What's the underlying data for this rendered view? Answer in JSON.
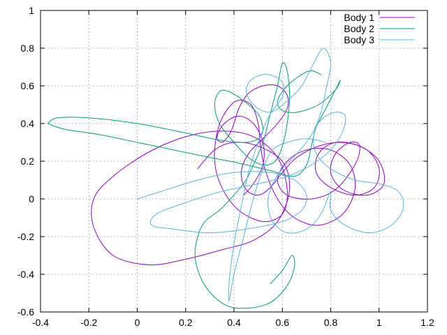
{
  "chart_data": {
    "type": "line",
    "title": "",
    "xlabel": "",
    "ylabel": "",
    "xlim": [
      -0.4,
      1.2
    ],
    "ylim": [
      -0.6,
      1.0
    ],
    "x_ticks": [
      -0.4,
      -0.2,
      0,
      0.2,
      0.4,
      0.6,
      0.8,
      1,
      1.2
    ],
    "x_tick_labels": [
      "-0.4",
      "-0.2",
      "0",
      "0.2",
      "0.4",
      "0.6",
      "0.8",
      "1",
      "1.2"
    ],
    "y_ticks": [
      -0.6,
      -0.4,
      -0.2,
      0,
      0.2,
      0.4,
      0.6,
      0.8,
      1
    ],
    "y_tick_labels": [
      "-0.6",
      "-0.4",
      "-0.2",
      "0",
      "0.2",
      "0.4",
      "0.6",
      "0.8",
      "1"
    ],
    "grid": true,
    "legend_position": "top-right",
    "series": [
      {
        "name": "Body 1",
        "color": "#9400d3",
        "points": [
          [
            0.25,
            0.16
          ],
          [
            0.32,
            0.26
          ],
          [
            0.4,
            0.3
          ],
          [
            0.5,
            0.28
          ],
          [
            0.6,
            0.2
          ],
          [
            0.63,
            0.05
          ],
          [
            0.58,
            -0.12
          ],
          [
            0.48,
            -0.22
          ],
          [
            0.35,
            -0.27
          ],
          [
            0.2,
            -0.32
          ],
          [
            0.05,
            -0.35
          ],
          [
            -0.1,
            -0.3
          ],
          [
            -0.18,
            -0.15
          ],
          [
            -0.18,
            0.0
          ],
          [
            -0.1,
            0.12
          ],
          [
            0.05,
            0.25
          ],
          [
            0.2,
            0.33
          ],
          [
            0.35,
            0.36
          ],
          [
            0.48,
            0.33
          ],
          [
            0.58,
            0.22
          ],
          [
            0.62,
            0.05
          ],
          [
            0.6,
            -0.08
          ],
          [
            0.52,
            -0.12
          ],
          [
            0.42,
            -0.06
          ],
          [
            0.35,
            0.06
          ],
          [
            0.32,
            0.2
          ],
          [
            0.33,
            0.35
          ],
          [
            0.36,
            0.45
          ],
          [
            0.41,
            0.52
          ],
          [
            0.47,
            0.5
          ],
          [
            0.5,
            0.4
          ],
          [
            0.51,
            0.28
          ],
          [
            0.53,
            0.15
          ],
          [
            0.58,
            0.0
          ],
          [
            0.65,
            -0.1
          ],
          [
            0.75,
            -0.14
          ],
          [
            0.85,
            -0.08
          ],
          [
            0.9,
            0.05
          ],
          [
            0.88,
            0.18
          ],
          [
            0.8,
            0.26
          ],
          [
            0.7,
            0.26
          ],
          [
            0.62,
            0.2
          ],
          [
            0.58,
            0.1
          ],
          [
            0.62,
            0.02
          ],
          [
            0.72,
            0.0
          ],
          [
            0.82,
            0.05
          ],
          [
            0.9,
            0.18
          ],
          [
            0.92,
            0.28
          ],
          [
            0.88,
            0.3
          ],
          [
            0.82,
            0.24
          ],
          [
            0.8,
            0.14
          ],
          [
            0.85,
            0.05
          ],
          [
            0.95,
            0.02
          ],
          [
            1.02,
            0.08
          ],
          [
            1.0,
            0.2
          ],
          [
            0.92,
            0.28
          ],
          [
            0.82,
            0.3
          ],
          [
            0.75,
            0.24
          ],
          [
            0.74,
            0.14
          ],
          [
            0.8,
            0.06
          ],
          [
            0.9,
            0.02
          ],
          [
            0.98,
            0.06
          ],
          [
            1.0,
            0.16
          ],
          [
            0.95,
            0.26
          ],
          [
            0.85,
            0.3
          ],
          [
            0.75,
            0.28
          ],
          [
            0.66,
            0.22
          ],
          [
            0.6,
            0.14
          ],
          [
            0.55,
            0.06
          ],
          [
            0.5,
            0.02
          ],
          [
            0.45,
            0.05
          ],
          [
            0.43,
            0.14
          ],
          [
            0.46,
            0.24
          ],
          [
            0.52,
            0.32
          ],
          [
            0.58,
            0.4
          ],
          [
            0.62,
            0.48
          ],
          [
            0.62,
            0.55
          ],
          [
            0.58,
            0.6
          ],
          [
            0.52,
            0.6
          ],
          [
            0.46,
            0.56
          ],
          [
            0.42,
            0.48
          ],
          [
            0.4,
            0.4
          ],
          [
            0.38,
            0.34
          ],
          [
            0.35,
            0.3
          ],
          [
            0.33,
            0.33
          ],
          [
            0.36,
            0.4
          ],
          [
            0.42,
            0.44
          ],
          [
            0.48,
            0.4
          ],
          [
            0.52,
            0.3
          ],
          [
            0.52,
            0.18
          ],
          [
            0.48,
            0.08
          ],
          [
            0.44,
            0.02
          ]
        ]
      },
      {
        "name": "Body 2",
        "color": "#009e73",
        "points": [
          [
            -0.37,
            0.4
          ],
          [
            -0.33,
            0.43
          ],
          [
            -0.2,
            0.43
          ],
          [
            0.0,
            0.4
          ],
          [
            0.2,
            0.35
          ],
          [
            0.35,
            0.31
          ],
          [
            0.45,
            0.3
          ],
          [
            0.5,
            0.32
          ],
          [
            0.52,
            0.37
          ],
          [
            0.5,
            0.45
          ],
          [
            0.44,
            0.52
          ],
          [
            0.38,
            0.57
          ],
          [
            0.34,
            0.57
          ],
          [
            0.32,
            0.5
          ],
          [
            0.34,
            0.4
          ],
          [
            0.4,
            0.3
          ],
          [
            0.46,
            0.22
          ],
          [
            0.52,
            0.18
          ],
          [
            0.57,
            0.2
          ],
          [
            0.6,
            0.28
          ],
          [
            0.62,
            0.4
          ],
          [
            0.63,
            0.55
          ],
          [
            0.62,
            0.68
          ],
          [
            0.6,
            0.72
          ],
          [
            0.58,
            0.6
          ],
          [
            0.55,
            0.45
          ],
          [
            0.52,
            0.3
          ],
          [
            0.48,
            0.18
          ],
          [
            0.45,
            0.1
          ],
          [
            0.4,
            0.02
          ],
          [
            0.34,
            -0.06
          ],
          [
            0.28,
            -0.12
          ],
          [
            0.25,
            -0.2
          ],
          [
            0.24,
            -0.32
          ],
          [
            0.28,
            -0.46
          ],
          [
            0.36,
            -0.56
          ],
          [
            0.45,
            -0.58
          ],
          [
            0.55,
            -0.55
          ],
          [
            0.62,
            -0.46
          ],
          [
            0.65,
            -0.36
          ],
          [
            0.64,
            -0.3
          ],
          [
            0.6,
            -0.38
          ],
          [
            0.55,
            -0.45
          ]
        ],
        "tail": [
          [
            -0.37,
            0.4
          ],
          [
            -0.3,
            0.37
          ],
          [
            -0.15,
            0.34
          ],
          [
            0.0,
            0.3
          ],
          [
            0.15,
            0.26
          ],
          [
            0.3,
            0.22
          ],
          [
            0.42,
            0.19
          ],
          [
            0.55,
            0.15
          ],
          [
            0.65,
            0.12
          ],
          [
            0.7,
            0.18
          ],
          [
            0.72,
            0.28
          ],
          [
            0.74,
            0.38
          ],
          [
            0.78,
            0.48
          ],
          [
            0.82,
            0.58
          ],
          [
            0.84,
            0.63
          ],
          [
            0.82,
            0.58
          ],
          [
            0.75,
            0.5
          ],
          [
            0.66,
            0.46
          ],
          [
            0.6,
            0.47
          ],
          [
            0.58,
            0.52
          ],
          [
            0.62,
            0.6
          ],
          [
            0.68,
            0.66
          ],
          [
            0.72,
            0.68
          ],
          [
            0.76,
            0.66
          ]
        ]
      },
      {
        "name": "Body 3",
        "color": "#56b4e9",
        "points": [
          [
            0.0,
            0.0
          ],
          [
            0.1,
            0.04
          ],
          [
            0.25,
            0.1
          ],
          [
            0.4,
            0.14
          ],
          [
            0.55,
            0.14
          ],
          [
            0.65,
            0.1
          ],
          [
            0.7,
            0.02
          ],
          [
            0.68,
            -0.06
          ],
          [
            0.6,
            -0.12
          ],
          [
            0.45,
            -0.16
          ],
          [
            0.3,
            -0.18
          ],
          [
            0.15,
            -0.16
          ],
          [
            0.06,
            -0.14
          ],
          [
            0.08,
            -0.08
          ],
          [
            0.2,
            -0.02
          ],
          [
            0.35,
            0.04
          ],
          [
            0.5,
            0.08
          ],
          [
            0.62,
            0.12
          ],
          [
            0.72,
            0.18
          ],
          [
            0.8,
            0.26
          ],
          [
            0.85,
            0.36
          ],
          [
            0.86,
            0.44
          ],
          [
            0.82,
            0.46
          ],
          [
            0.76,
            0.42
          ],
          [
            0.73,
            0.34
          ],
          [
            0.74,
            0.24
          ],
          [
            0.8,
            0.16
          ],
          [
            0.9,
            0.1
          ],
          [
            1.0,
            0.08
          ],
          [
            1.08,
            0.04
          ],
          [
            1.1,
            -0.05
          ],
          [
            1.05,
            -0.14
          ],
          [
            0.96,
            -0.18
          ],
          [
            0.86,
            -0.14
          ],
          [
            0.8,
            -0.06
          ],
          [
            0.8,
            0.04
          ],
          [
            0.76,
            -0.08
          ],
          [
            0.7,
            -0.16
          ],
          [
            0.62,
            -0.18
          ],
          [
            0.56,
            -0.12
          ],
          [
            0.54,
            -0.02
          ],
          [
            0.56,
            0.08
          ],
          [
            0.6,
            0.16
          ],
          [
            0.66,
            0.24
          ],
          [
            0.72,
            0.34
          ],
          [
            0.76,
            0.46
          ],
          [
            0.78,
            0.58
          ],
          [
            0.8,
            0.72
          ],
          [
            0.77,
            0.8
          ],
          [
            0.73,
            0.72
          ],
          [
            0.68,
            0.6
          ],
          [
            0.62,
            0.52
          ],
          [
            0.55,
            0.46
          ],
          [
            0.48,
            0.5
          ],
          [
            0.45,
            0.58
          ],
          [
            0.48,
            0.64
          ],
          [
            0.54,
            0.66
          ],
          [
            0.6,
            0.62
          ],
          [
            0.6,
            0.54
          ],
          [
            0.55,
            0.45
          ],
          [
            0.5,
            0.3
          ],
          [
            0.46,
            0.14
          ],
          [
            0.43,
            -0.04
          ],
          [
            0.4,
            -0.24
          ],
          [
            0.38,
            -0.44
          ],
          [
            0.38,
            -0.54
          ],
          [
            0.4,
            -0.4
          ],
          [
            0.44,
            -0.2
          ],
          [
            0.48,
            0.0
          ],
          [
            0.52,
            0.16
          ],
          [
            0.56,
            0.26
          ],
          [
            0.62,
            0.3
          ],
          [
            0.7,
            0.32
          ],
          [
            0.78,
            0.3
          ]
        ]
      }
    ]
  }
}
